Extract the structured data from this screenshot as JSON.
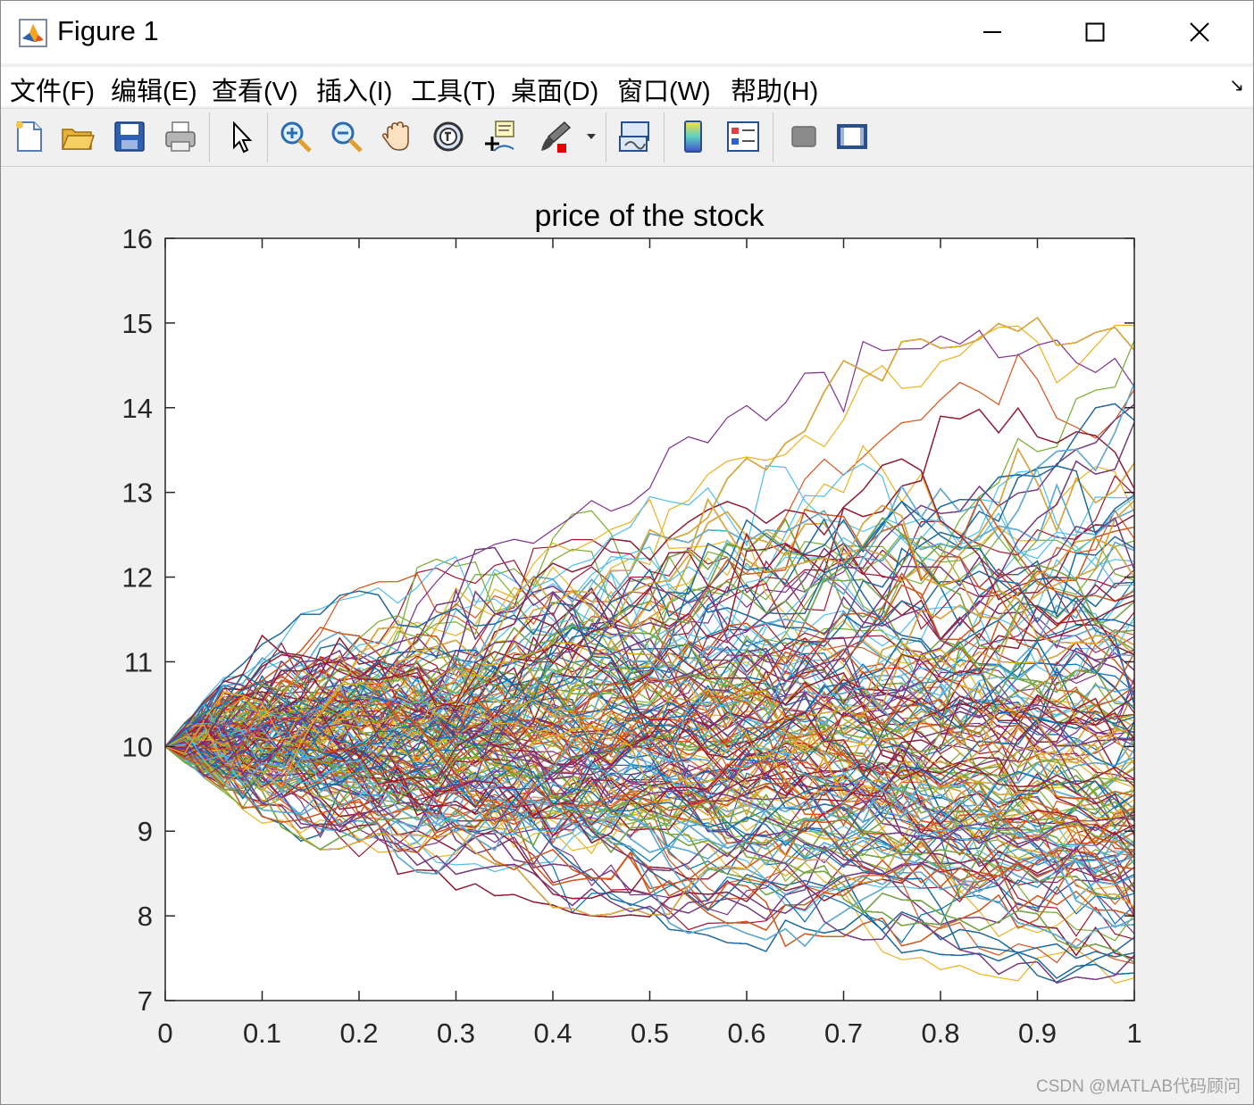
{
  "window": {
    "title": "Figure 1",
    "controls": {
      "minimize": "—",
      "maximize": "☐",
      "close": "✕"
    }
  },
  "menu": {
    "items": [
      "文件(F)",
      "编辑(E)",
      "查看(V)",
      "插入(I)",
      "工具(T)",
      "桌面(D)",
      "窗口(W)",
      "帮助(H)"
    ],
    "dock": "↘"
  },
  "toolbar": {
    "buttons": [
      "new-figure-icon",
      "open-file-icon",
      "save-icon",
      "print-icon",
      "edit-plot-icon",
      "zoom-in-icon",
      "zoom-out-icon",
      "pan-icon",
      "rotate-3d-icon",
      "data-cursor-icon",
      "brush-icon",
      "link-plot-icon",
      "colorbar-icon",
      "legend-icon",
      "hide-plot-tools-icon",
      "show-plot-tools-icon"
    ]
  },
  "watermark": "CSDN @MATLAB代码顾问",
  "chart_data": {
    "type": "line",
    "title": "price of the stock",
    "xlabel": "",
    "ylabel": "",
    "xlim": [
      0,
      1
    ],
    "ylim": [
      7,
      16
    ],
    "xticks": [
      "0",
      "0.1",
      "0.2",
      "0.3",
      "0.4",
      "0.5",
      "0.6",
      "0.7",
      "0.8",
      "0.9",
      "1"
    ],
    "yticks": [
      "7",
      "8",
      "9",
      "10",
      "11",
      "12",
      "13",
      "14",
      "15",
      "16"
    ],
    "grid": false,
    "start_value": 10,
    "steps": 50,
    "series_colors": [
      "#0072BD",
      "#D95319",
      "#EDB120",
      "#7E2F8E",
      "#77AC30",
      "#4DBEEE",
      "#A2142F"
    ],
    "envelope": {
      "x": [
        0,
        0.1,
        0.2,
        0.3,
        0.4,
        0.5,
        0.6,
        0.7,
        0.8,
        0.9,
        1.0
      ],
      "upper": [
        10,
        11.4,
        11.9,
        12.3,
        12.6,
        13.4,
        14.2,
        14.8,
        14.85,
        15.1,
        15.3
      ],
      "lower": [
        10,
        9.05,
        8.6,
        8.3,
        8.05,
        7.8,
        7.6,
        7.5,
        7.35,
        7.2,
        7.15
      ]
    }
  }
}
